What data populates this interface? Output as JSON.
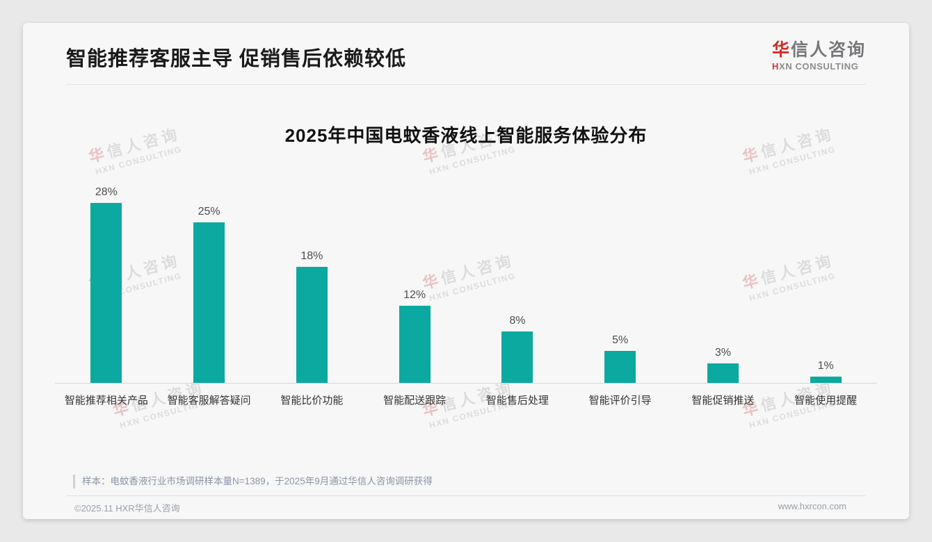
{
  "header": {
    "title": "智能推荐客服主导 促销售后依赖较低"
  },
  "logo": {
    "cn_first": "华",
    "cn_rest": "信人咨询",
    "en_first": "H",
    "en_rest": "XN CONSULTING"
  },
  "watermark": {
    "cn_first": "华",
    "cn_rest": "信人咨询",
    "en": "HXN CONSULTING"
  },
  "chart_data": {
    "type": "bar",
    "title": "2025年中国电蚊香液线上智能服务体验分布",
    "categories": [
      "智能推荐相关产品",
      "智能客服解答疑问",
      "智能比价功能",
      "智能配送跟踪",
      "智能售后处理",
      "智能评价引导",
      "智能促销推送",
      "智能使用提醒"
    ],
    "values": [
      28,
      25,
      18,
      12,
      8,
      5,
      3,
      1
    ],
    "value_labels": [
      "28%",
      "25%",
      "18%",
      "12%",
      "8%",
      "5%",
      "3%",
      "1%"
    ],
    "unit": "%",
    "xlabel": "",
    "ylabel": "",
    "ylim": [
      0,
      30
    ],
    "grid": false,
    "legend": false,
    "bar_color": "#0BA9A0"
  },
  "note": {
    "text": "样本：电蚊香液行业市场调研样本量N=1389，于2025年9月通过华信人咨询调研获得"
  },
  "footer": {
    "left": "©2025.11 HXR华信人咨询",
    "right": "www.hxrcon.com"
  }
}
